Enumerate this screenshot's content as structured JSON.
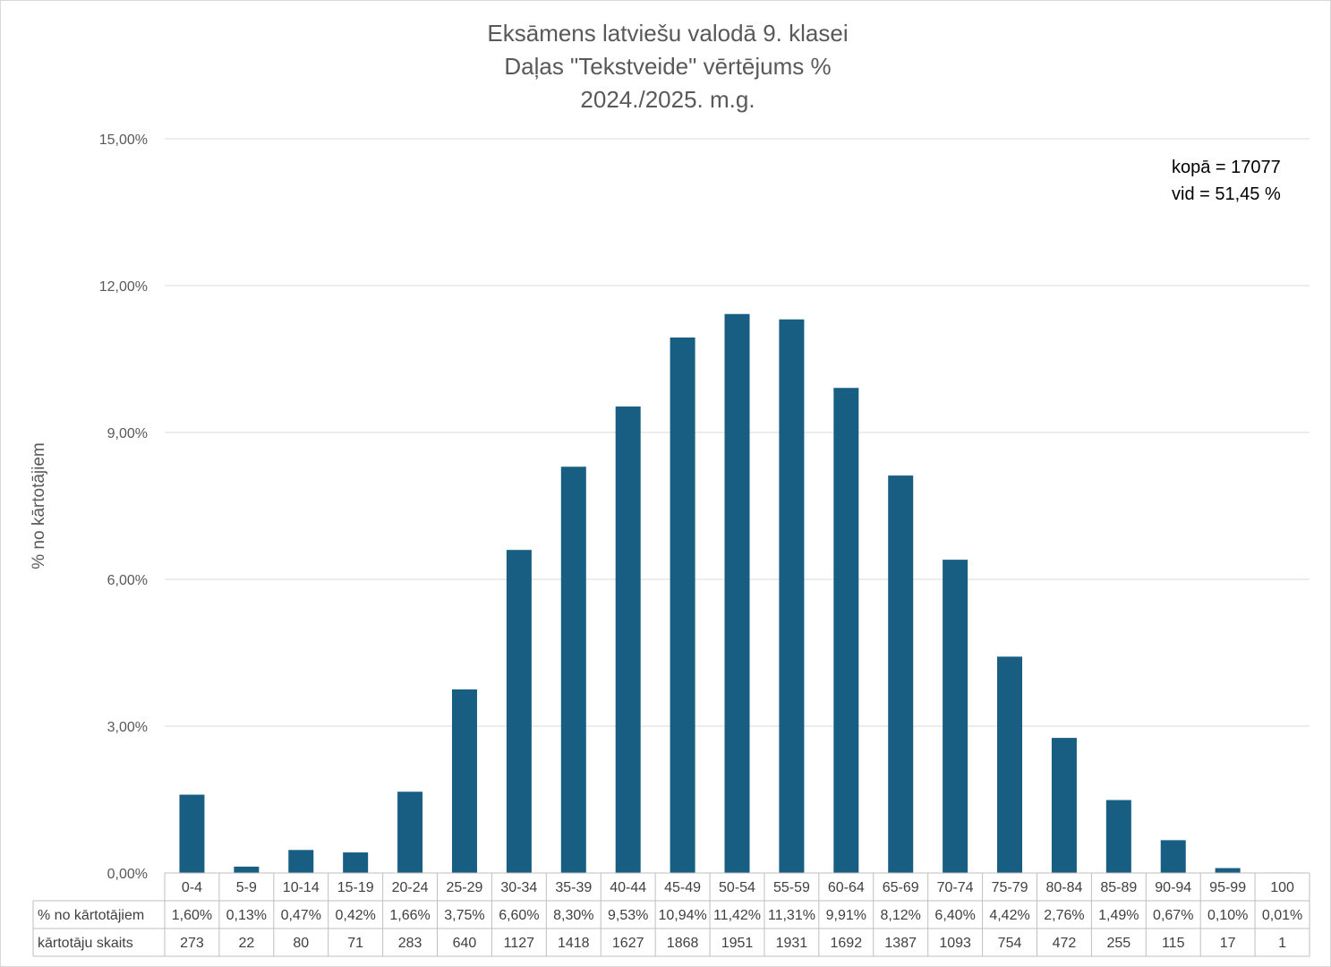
{
  "chart_data": {
    "type": "bar",
    "title": [
      "Eksāmens latviešu valodā 9. klasei",
      "Daļas \"Tekstveide\" vērtējums %",
      "2024./2025. m.g."
    ],
    "ylabel": "% no kārtotājiem",
    "ylim": [
      0,
      15
    ],
    "yticks": [
      "0,00%",
      "3,00%",
      "6,00%",
      "9,00%",
      "12,00%",
      "15,00%"
    ],
    "grid": true,
    "categories": [
      "0-4",
      "5-9",
      "10-14",
      "15-19",
      "20-24",
      "25-29",
      "30-34",
      "35-39",
      "40-44",
      "45-49",
      "50-54",
      "55-59",
      "60-64",
      "65-69",
      "70-74",
      "75-79",
      "80-84",
      "85-89",
      "90-94",
      "95-99",
      "100"
    ],
    "series": [
      {
        "name": "% no kārtotājiem",
        "values": [
          1.6,
          0.13,
          0.47,
          0.42,
          1.66,
          3.75,
          6.6,
          8.3,
          9.53,
          10.94,
          11.42,
          11.31,
          9.91,
          8.12,
          6.4,
          4.42,
          2.76,
          1.49,
          0.67,
          0.1,
          0.01
        ],
        "labels": [
          "1,60%",
          "0,13%",
          "0,47%",
          "0,42%",
          "1,66%",
          "3,75%",
          "6,60%",
          "8,30%",
          "9,53%",
          "10,94%",
          "11,42%",
          "11,31%",
          "9,91%",
          "8,12%",
          "6,40%",
          "4,42%",
          "2,76%",
          "1,49%",
          "0,67%",
          "0,10%",
          "0,01%"
        ]
      },
      {
        "name": "kārtotāju skaits",
        "values": [
          273,
          22,
          80,
          71,
          283,
          640,
          1127,
          1418,
          1627,
          1868,
          1951,
          1931,
          1692,
          1387,
          1093,
          754,
          472,
          255,
          115,
          17,
          1
        ]
      }
    ],
    "annotations": [
      "kopā = 17077",
      "vid = 51,45 %"
    ],
    "colors": {
      "bar": "#175e82"
    }
  }
}
